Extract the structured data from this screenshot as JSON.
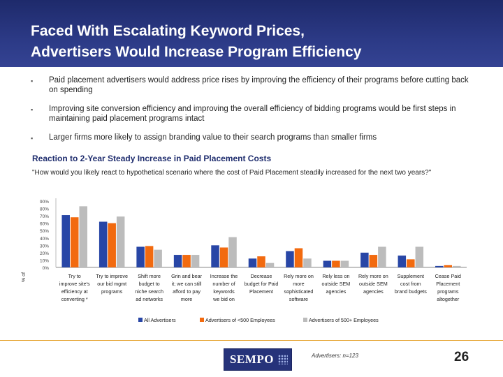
{
  "slide": {
    "title": "Faced With Escalating Keyword Prices,\nAdvertisers Would Increase Program Efficiency",
    "bullets": [
      "Paid placement advertisers would address price rises by improving the efficiency of their programs before cutting back on spending",
      "Improving site conversion efficiency and improving the overall efficiency of bidding programs would be first steps in maintaining paid placement programs intact",
      "Larger firms more likely to assign branding value to their search programs than smaller firms"
    ],
    "bullet_glyph": "▪",
    "logo": "SEMPO",
    "sample_note": "Advertisers: n=123",
    "page_number": "26"
  },
  "chart_data": {
    "type": "bar",
    "title": "Reaction to 2-Year Steady Increase in Paid Placement Costs",
    "subtitle": "\"How would you likely react to hypothetical scenario where the cost of Paid Placement steadily increased for the next two years?\"",
    "ylabel": "% of",
    "ylim": [
      0,
      90
    ],
    "yticks": [
      "90%",
      "80%",
      "70%",
      "60%",
      "50%",
      "40%",
      "30%",
      "20%",
      "10%",
      "0%"
    ],
    "legend_position": "bottom",
    "categories": [
      "Try to improve site's efficiency at converting *",
      "Try to improve our bid mgmt programs",
      "Shift more budget to niche search ad networks",
      "Grin and bear it; we can still afford to pay more",
      "Increase the number of keywords we bid on",
      "Decrease budget for Paid Placement",
      "Rely more on more sophisticated software",
      "Rely less on outside SEM agencies",
      "Rely more on outside SEM agencies",
      "Supplement cost from brand budgets",
      "Cease Paid Placement programs altogether"
    ],
    "category_lines": [
      [
        "Try to",
        "improve site's",
        "efficiency at",
        "converting *"
      ],
      [
        "Try to improve",
        "our bid mgmt",
        "programs"
      ],
      [
        "Shift more",
        "budget to",
        "niche search",
        "ad networks"
      ],
      [
        "Grin and bear",
        "it; we can still",
        "afford to pay",
        "more"
      ],
      [
        "Increase the",
        "number of",
        "keywords",
        "we bid on"
      ],
      [
        "Decrease",
        "budget for Paid",
        "Placement"
      ],
      [
        "Rely more on",
        "more",
        "sophisticated",
        "software"
      ],
      [
        "Rely less on",
        "outside SEM",
        "agencies"
      ],
      [
        "Rely more on",
        "outside SEM",
        "agencies"
      ],
      [
        "Supplement",
        "cost from",
        "brand budgets"
      ],
      [
        "Cease Paid",
        "Placement",
        "programs",
        "altogether"
      ]
    ],
    "series": [
      {
        "name": "All Advertisers",
        "color": "#2846a6",
        "values": [
          71,
          62,
          28,
          17,
          30,
          12,
          22,
          9,
          20,
          16,
          2
        ]
      },
      {
        "name": "Advertisers of <500 Employees",
        "color": "#f26a0f",
        "values": [
          68,
          60,
          29,
          17,
          27,
          15,
          26,
          9,
          17,
          11,
          3
        ]
      },
      {
        "name": "Advertisers of 500+ Employees",
        "color": "#bcbcbc",
        "values": [
          83,
          69,
          24,
          17,
          41,
          6,
          12,
          9,
          28,
          28,
          2
        ]
      }
    ]
  }
}
